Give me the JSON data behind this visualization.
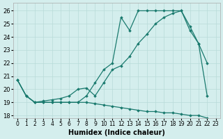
{
  "xlabel": "Humidex (Indice chaleur)",
  "background_color": "#d4eeed",
  "line_color": "#1a7a6e",
  "grid_color": "#b8dbd8",
  "xlim": [
    -0.5,
    23.5
  ],
  "ylim": [
    17.8,
    26.6
  ],
  "yticks": [
    18,
    19,
    20,
    21,
    22,
    23,
    24,
    25,
    26
  ],
  "xticks": [
    0,
    1,
    2,
    3,
    4,
    5,
    6,
    7,
    8,
    9,
    10,
    11,
    12,
    13,
    14,
    15,
    16,
    17,
    18,
    19,
    20,
    21,
    22,
    23
  ],
  "series": [
    {
      "x": [
        0,
        1,
        2,
        3,
        4,
        5,
        6,
        7,
        8,
        9,
        10,
        11,
        12,
        13,
        14,
        15,
        16,
        17,
        18,
        19,
        20,
        21,
        22
      ],
      "y": [
        20.7,
        19.5,
        19.0,
        19.0,
        19.0,
        19.0,
        19.0,
        19.0,
        19.5,
        20.5,
        21.5,
        22.0,
        25.5,
        24.5,
        26.0,
        26.0,
        26.0,
        26.0,
        26.0,
        26.0,
        24.5,
        23.5,
        19.5
      ]
    },
    {
      "x": [
        0,
        1,
        2,
        3,
        4,
        5,
        6,
        7,
        8,
        9,
        10,
        11,
        12,
        13,
        14,
        15,
        16,
        17,
        18,
        19,
        20,
        21,
        22
      ],
      "y": [
        20.7,
        19.5,
        19.0,
        19.1,
        19.2,
        19.3,
        19.5,
        20.0,
        20.1,
        19.5,
        20.5,
        21.5,
        21.8,
        22.5,
        23.5,
        24.2,
        25.0,
        25.5,
        25.8,
        26.0,
        24.8,
        23.5,
        22.0
      ]
    },
    {
      "x": [
        0,
        1,
        2,
        3,
        4,
        5,
        6,
        7,
        8,
        9,
        10,
        11,
        12,
        13,
        14,
        15,
        16,
        17,
        18,
        19,
        20,
        21,
        22,
        23
      ],
      "y": [
        20.7,
        19.5,
        19.0,
        19.0,
        19.0,
        19.0,
        19.0,
        19.0,
        19.0,
        18.9,
        18.8,
        18.7,
        18.6,
        18.5,
        18.4,
        18.3,
        18.3,
        18.2,
        18.2,
        18.1,
        18.0,
        18.0,
        17.8,
        17.5
      ]
    }
  ]
}
